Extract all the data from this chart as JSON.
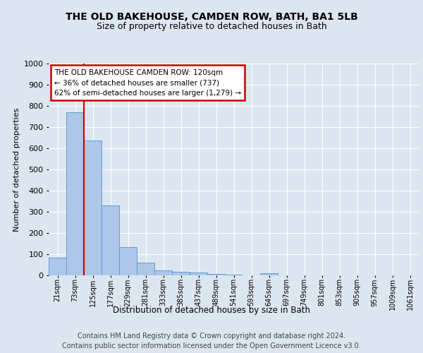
{
  "title1": "THE OLD BAKEHOUSE, CAMDEN ROW, BATH, BA1 5LB",
  "title2": "Size of property relative to detached houses in Bath",
  "xlabel": "Distribution of detached houses by size in Bath",
  "ylabel": "Number of detached properties",
  "categories": [
    "21sqm",
    "73sqm",
    "125sqm",
    "177sqm",
    "229sqm",
    "281sqm",
    "333sqm",
    "385sqm",
    "437sqm",
    "489sqm",
    "541sqm",
    "593sqm",
    "645sqm",
    "697sqm",
    "749sqm",
    "801sqm",
    "853sqm",
    "905sqm",
    "957sqm",
    "1009sqm",
    "1061sqm"
  ],
  "values": [
    83,
    770,
    638,
    330,
    135,
    60,
    22,
    18,
    12,
    7,
    5,
    0,
    10,
    0,
    0,
    0,
    0,
    0,
    0,
    0,
    0
  ],
  "bar_color": "#aec6e8",
  "bar_edge_color": "#5a9fd4",
  "annotation_line1": "THE OLD BAKEHOUSE CAMDEN ROW: 120sqm",
  "annotation_line2": "← 36% of detached houses are smaller (737)",
  "annotation_line3": "62% of semi-detached houses are larger (1,279) →",
  "annotation_box_color": "#ffffff",
  "annotation_box_edge": "#cc0000",
  "vline_color": "#cc0000",
  "vline_pos": 1.5,
  "ylim": [
    0,
    1000
  ],
  "yticks": [
    0,
    100,
    200,
    300,
    400,
    500,
    600,
    700,
    800,
    900,
    1000
  ],
  "footer1": "Contains HM Land Registry data © Crown copyright and database right 2024.",
  "footer2": "Contains public sector information licensed under the Open Government Licence v3.0.",
  "bg_color": "#dce6f1",
  "plot_bg_color": "#dce6f1",
  "grid_color": "#ffffff",
  "title1_fontsize": 10,
  "title2_fontsize": 9,
  "footer_fontsize": 7
}
